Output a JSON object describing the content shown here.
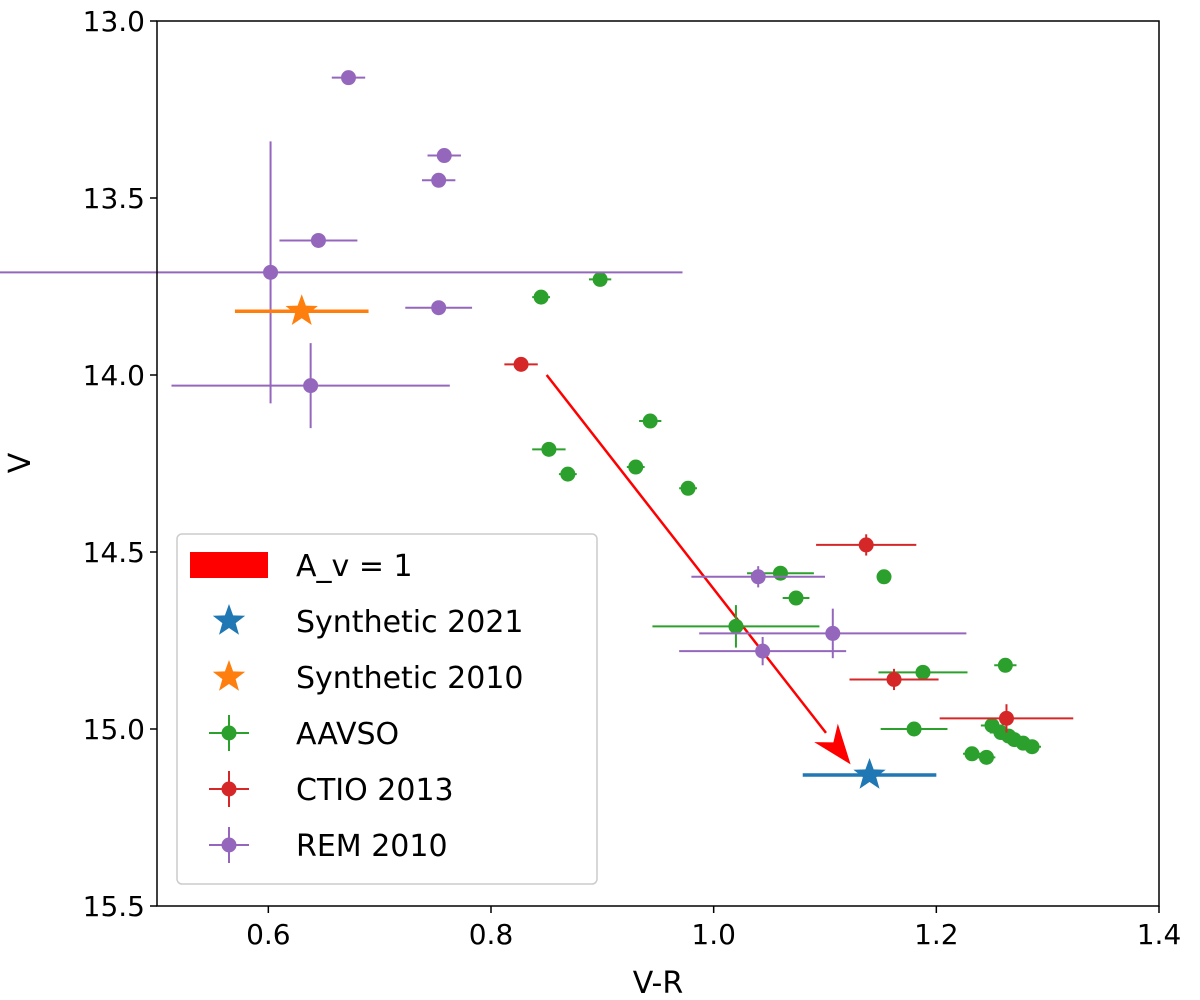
{
  "chart_data": {
    "type": "scatter",
    "title": "",
    "xlabel": "V-R",
    "ylabel": "V",
    "xlim": [
      0.5,
      1.4
    ],
    "ylim": [
      15.5,
      13.0
    ],
    "y_inverted": true,
    "xticks": [
      0.6,
      0.8,
      1.0,
      1.2,
      1.4
    ],
    "xtick_labels": [
      "0.6",
      "0.8",
      "1.0",
      "1.2",
      "1.4"
    ],
    "yticks": [
      13.0,
      13.5,
      14.0,
      14.5,
      15.0,
      15.5
    ],
    "ytick_labels": [
      "13.0",
      "13.5",
      "14.0",
      "14.5",
      "15.0",
      "15.5"
    ],
    "grid": false,
    "legend_position": "lower-left",
    "annotations": [
      {
        "type": "arrow",
        "label": "A_v = 1",
        "color": "#ff0000",
        "from": [
          0.85,
          14.0
        ],
        "to": [
          1.123,
          15.1
        ]
      }
    ],
    "series": [
      {
        "name": "Synthetic 2021",
        "color": "#1f77b4",
        "marker": "star",
        "points": [
          {
            "x": 1.14,
            "y": 15.13,
            "xerr": 0.06,
            "yerr": 0
          }
        ]
      },
      {
        "name": "Synthetic 2010",
        "color": "#ff7f0e",
        "marker": "star",
        "points": [
          {
            "x": 0.63,
            "y": 13.82,
            "xerr": 0.06,
            "yerr": 0
          }
        ]
      },
      {
        "name": "AAVSO",
        "color": "#2ca02c",
        "marker": "circle",
        "points": [
          {
            "x": 0.845,
            "y": 13.78,
            "xerr": 0.008,
            "yerr": 0.01
          },
          {
            "x": 0.898,
            "y": 13.73,
            "xerr": 0.01,
            "yerr": 0.01
          },
          {
            "x": 0.943,
            "y": 14.13,
            "xerr": 0.01,
            "yerr": 0.01
          },
          {
            "x": 0.852,
            "y": 14.21,
            "xerr": 0.015,
            "yerr": 0.01
          },
          {
            "x": 0.869,
            "y": 14.28,
            "xerr": 0.008,
            "yerr": 0.01
          },
          {
            "x": 0.93,
            "y": 14.26,
            "xerr": 0.008,
            "yerr": 0.01
          },
          {
            "x": 0.977,
            "y": 14.32,
            "xerr": 0.008,
            "yerr": 0.01
          },
          {
            "x": 1.02,
            "y": 14.71,
            "xerr": 0.075,
            "yerr": 0.06
          },
          {
            "x": 1.06,
            "y": 14.56,
            "xerr": 0.03,
            "yerr": 0.02
          },
          {
            "x": 1.074,
            "y": 14.63,
            "xerr": 0.012,
            "yerr": 0.01
          },
          {
            "x": 1.153,
            "y": 14.57,
            "xerr": 0.005,
            "yerr": 0.01
          },
          {
            "x": 1.188,
            "y": 14.84,
            "xerr": 0.04,
            "yerr": 0.02
          },
          {
            "x": 1.262,
            "y": 14.82,
            "xerr": 0.01,
            "yerr": 0.01
          },
          {
            "x": 1.18,
            "y": 15.0,
            "xerr": 0.03,
            "yerr": 0.02
          },
          {
            "x": 1.25,
            "y": 14.99,
            "xerr": 0.01,
            "yerr": 0.01
          },
          {
            "x": 1.258,
            "y": 15.01,
            "xerr": 0.01,
            "yerr": 0.01
          },
          {
            "x": 1.265,
            "y": 15.02,
            "xerr": 0.008,
            "yerr": 0.01
          },
          {
            "x": 1.27,
            "y": 15.03,
            "xerr": 0.008,
            "yerr": 0.01
          },
          {
            "x": 1.278,
            "y": 15.04,
            "xerr": 0.008,
            "yerr": 0.01
          },
          {
            "x": 1.286,
            "y": 15.05,
            "xerr": 0.008,
            "yerr": 0.01
          },
          {
            "x": 1.232,
            "y": 15.07,
            "xerr": 0.008,
            "yerr": 0.01
          },
          {
            "x": 1.245,
            "y": 15.08,
            "xerr": 0.008,
            "yerr": 0.01
          }
        ]
      },
      {
        "name": "CTIO 2013",
        "color": "#d62728",
        "marker": "circle",
        "points": [
          {
            "x": 0.827,
            "y": 13.97,
            "xerr": 0.015,
            "yerr": 0.01
          },
          {
            "x": 1.137,
            "y": 14.48,
            "xerr": 0.045,
            "yerr": 0.03
          },
          {
            "x": 1.162,
            "y": 14.86,
            "xerr": 0.04,
            "yerr": 0.03
          },
          {
            "x": 1.263,
            "y": 14.97,
            "xerr": 0.06,
            "yerr": 0.04
          }
        ]
      },
      {
        "name": "REM 2010",
        "color": "#9467bd",
        "marker": "circle",
        "points": [
          {
            "x": 0.672,
            "y": 13.16,
            "xerr": 0.015,
            "yerr": 0.01
          },
          {
            "x": 0.758,
            "y": 13.38,
            "xerr": 0.015,
            "yerr": 0.01
          },
          {
            "x": 0.753,
            "y": 13.45,
            "xerr": 0.015,
            "yerr": 0.01
          },
          {
            "x": 0.645,
            "y": 13.62,
            "xerr": 0.035,
            "yerr": 0.02
          },
          {
            "x": 0.602,
            "y": 13.71,
            "xerr": 0.37,
            "yerr": 0.37
          },
          {
            "x": 0.753,
            "y": 13.81,
            "xerr": 0.03,
            "yerr": 0.01
          },
          {
            "x": 0.638,
            "y": 14.03,
            "xerr": 0.125,
            "yerr": 0.12
          },
          {
            "x": 1.04,
            "y": 14.57,
            "xerr": 0.06,
            "yerr": 0.03
          },
          {
            "x": 1.107,
            "y": 14.73,
            "xerr": 0.12,
            "yerr": 0.07
          },
          {
            "x": 1.044,
            "y": 14.78,
            "xerr": 0.075,
            "yerr": 0.04
          }
        ]
      }
    ],
    "legend_entries": [
      {
        "label": "A_v = 1",
        "series": "arrow",
        "color": "#ff0000"
      },
      {
        "label": "Synthetic 2021",
        "series": "Synthetic 2021",
        "color": "#1f77b4"
      },
      {
        "label": "Synthetic 2010",
        "series": "Synthetic 2010",
        "color": "#ff7f0e"
      },
      {
        "label": "AAVSO",
        "series": "AAVSO",
        "color": "#2ca02c"
      },
      {
        "label": "CTIO 2013",
        "series": "CTIO 2013",
        "color": "#d62728"
      },
      {
        "label": "REM 2010",
        "series": "REM 2010",
        "color": "#9467bd"
      }
    ]
  }
}
